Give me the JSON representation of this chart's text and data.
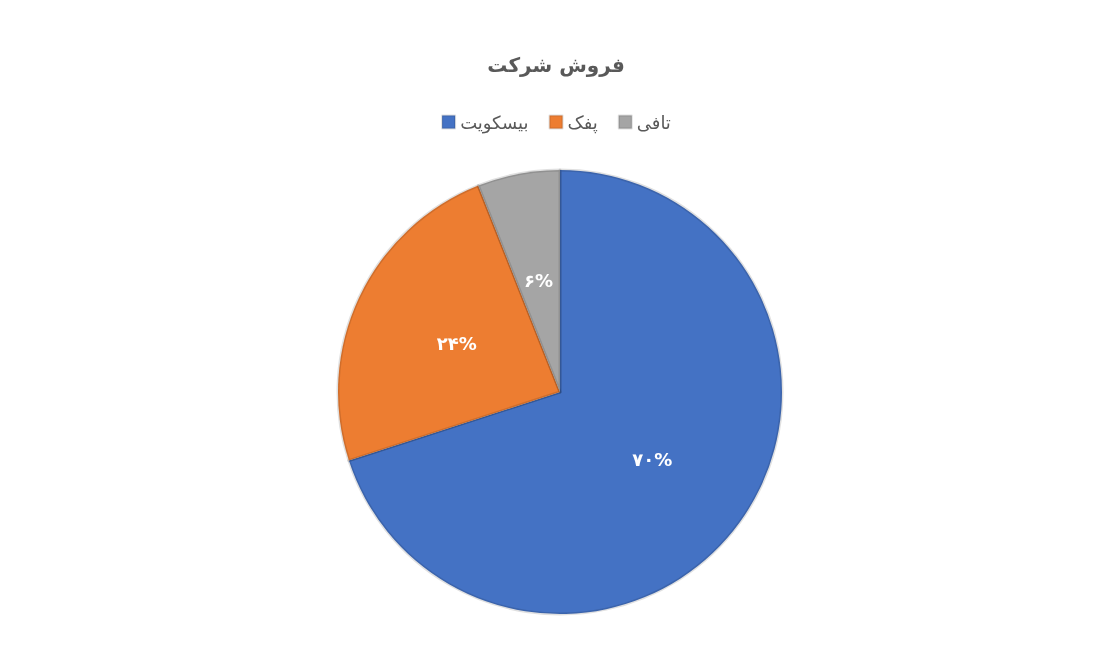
{
  "chart_data": {
    "type": "pie",
    "title": "فروش شرکت",
    "categories": [
      "بیسکویت",
      "پفک",
      "تافی"
    ],
    "values": [
      70,
      24,
      6
    ],
    "colors": [
      "#4472c4",
      "#ed7d31",
      "#a5a5a5"
    ],
    "value_labels": [
      "۷۰%",
      "۲۴%",
      "۶%"
    ],
    "legend": "top"
  }
}
